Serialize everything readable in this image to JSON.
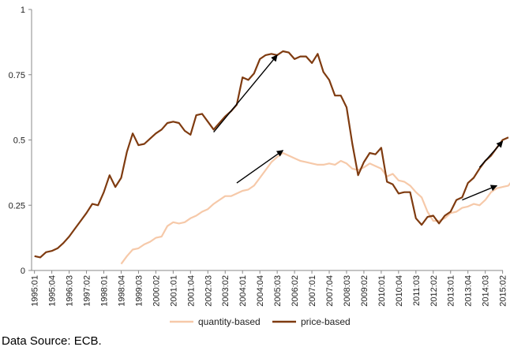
{
  "chart_data": {
    "type": "line",
    "title": "",
    "xlabel": "",
    "ylabel": "",
    "ylim": [
      0,
      1
    ],
    "yticks": [
      "0",
      "0.25",
      "0.5",
      "0.75",
      "1"
    ],
    "grid": false,
    "legend_position": "bottom",
    "x_start": "1995:01",
    "xtick_labels": [
      "1995:01",
      "1995:04",
      "1996:03",
      "1997:02",
      "1998:01",
      "1998:04",
      "1999:03",
      "2000:02",
      "2001:01",
      "2001:04",
      "2002:03",
      "2003:02",
      "2004:01",
      "2004:04",
      "2005:03",
      "2006:02",
      "2007:01",
      "2007:04",
      "2008:03",
      "2009:02",
      "2010:01",
      "2010:04",
      "2011:03",
      "2012:02",
      "2013:01",
      "2013:04",
      "2014:03",
      "2015:02"
    ],
    "series": [
      {
        "name": "quantity-based",
        "color": "#f6c9a9",
        "start": "1998:04",
        "values": [
          0.025,
          0.055,
          0.08,
          0.085,
          0.1,
          0.11,
          0.125,
          0.13,
          0.17,
          0.185,
          0.18,
          0.185,
          0.2,
          0.21,
          0.225,
          0.235,
          0.255,
          0.27,
          0.285,
          0.285,
          0.295,
          0.305,
          0.31,
          0.325,
          0.355,
          0.385,
          0.415,
          0.435,
          0.45,
          0.44,
          0.43,
          0.42,
          0.415,
          0.41,
          0.405,
          0.405,
          0.41,
          0.405,
          0.42,
          0.41,
          0.39,
          0.385,
          0.395,
          0.41,
          0.4,
          0.39,
          0.36,
          0.37,
          0.345,
          0.34,
          0.325,
          0.3,
          0.28,
          0.225,
          0.19,
          0.19,
          0.2,
          0.22,
          0.225,
          0.24,
          0.245,
          0.255,
          0.25,
          0.27,
          0.3,
          0.315,
          0.32,
          0.325,
          0.355,
          0.33
        ]
      },
      {
        "name": "price-based",
        "color": "#7f3b10",
        "start": "1995:01",
        "values": [
          0.055,
          0.05,
          0.07,
          0.075,
          0.085,
          0.105,
          0.13,
          0.16,
          0.19,
          0.22,
          0.255,
          0.25,
          0.3,
          0.365,
          0.32,
          0.355,
          0.455,
          0.525,
          0.48,
          0.485,
          0.505,
          0.525,
          0.54,
          0.565,
          0.57,
          0.565,
          0.535,
          0.52,
          0.595,
          0.6,
          0.57,
          0.54,
          0.565,
          0.59,
          0.61,
          0.635,
          0.74,
          0.73,
          0.755,
          0.81,
          0.825,
          0.83,
          0.825,
          0.84,
          0.835,
          0.81,
          0.82,
          0.82,
          0.795,
          0.83,
          0.76,
          0.73,
          0.67,
          0.67,
          0.625,
          0.485,
          0.365,
          0.415,
          0.45,
          0.445,
          0.47,
          0.34,
          0.33,
          0.295,
          0.3,
          0.3,
          0.2,
          0.175,
          0.205,
          0.21,
          0.18,
          0.21,
          0.225,
          0.27,
          0.28,
          0.335,
          0.355,
          0.39,
          0.42,
          0.44,
          0.47,
          0.5,
          0.51
        ]
      }
    ],
    "annotations": [
      {
        "type": "arrow",
        "from": [
          "2002:04",
          0.53
        ],
        "to": [
          "2005:03",
          0.825
        ]
      },
      {
        "type": "arrow",
        "from": [
          "2003:04",
          0.335
        ],
        "to": [
          "2005:04",
          0.46
        ]
      },
      {
        "type": "arrow",
        "from": [
          "2014:02",
          0.395
        ],
        "to": [
          "2015:02",
          0.495
        ]
      },
      {
        "type": "arrow",
        "from": [
          "2013:03",
          0.27
        ],
        "to": [
          "2015:01",
          0.325
        ]
      }
    ]
  },
  "source_note": "Data Source: ECB."
}
